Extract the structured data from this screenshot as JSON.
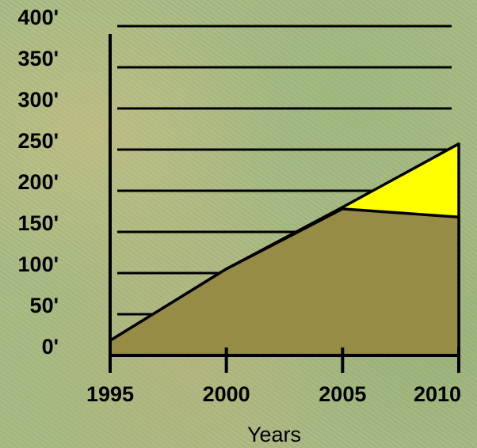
{
  "chart_data": {
    "type": "area",
    "x": [
      1995,
      2000,
      2005,
      2010
    ],
    "x_tick_labels": [
      "1995",
      "2000",
      "2005",
      "2010"
    ],
    "y_tick_labels": [
      "0'",
      "50'",
      "100'",
      "150'",
      "200'",
      "250'",
      "300'",
      "350'",
      "400'"
    ],
    "y_ticks": [
      0,
      50,
      100,
      150,
      200,
      250,
      300,
      350,
      400
    ],
    "ylim": [
      0,
      400
    ],
    "xlim": [
      1995,
      2010
    ],
    "xlabel": "Years",
    "ylabel": "",
    "title": "",
    "grid": true,
    "series": [
      {
        "values": [
          18,
          105,
          180,
          257
        ],
        "color": "#ffff00"
      },
      {
        "values": [
          18,
          105,
          178,
          168
        ],
        "color": "#978c46"
      }
    ]
  }
}
